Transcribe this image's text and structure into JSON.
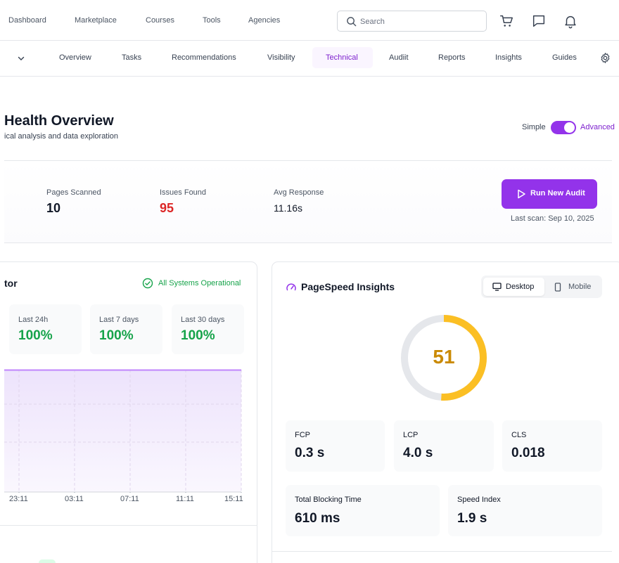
{
  "topnav": {
    "links": [
      "Dashboard",
      "Marketplace",
      "Courses",
      "Tools",
      "Agencies"
    ],
    "search_placeholder": "Search"
  },
  "subnav": {
    "tabs": [
      "Overview",
      "Tasks",
      "Recommendations",
      "Visibility",
      "Technical",
      "Audiit",
      "Reports",
      "Insights",
      "Guides"
    ],
    "active_tab": "Technical"
  },
  "header": {
    "title": "Health Overview",
    "subtitle": "ical analysis and data exploration",
    "mode_simple": "Simple",
    "mode_advanced": "Advanced"
  },
  "stats": {
    "pages_scanned_label": "Pages Scanned",
    "pages_scanned": "10",
    "issues_found_label": "Issues Found",
    "issues_found": "95",
    "avg_response_label": "Avg Response",
    "avg_response": "11.16s",
    "run_audit_label": "Run New Audit",
    "last_scan": "Last scan: Sep 10, 2025"
  },
  "uptime": {
    "title": "tor",
    "status": "All Systems Operational",
    "periods": [
      {
        "label": "Last 24h",
        "value": "100%"
      },
      {
        "label": "Last 7 days",
        "value": "100%"
      },
      {
        "label": "Last 30 days",
        "value": "100%"
      }
    ],
    "x_ticks": [
      "23:11",
      "03:11",
      "07:11",
      "11:11",
      "15:11"
    ]
  },
  "pagespeed": {
    "title": "PageSpeed Insights",
    "desktop_label": "Desktop",
    "mobile_label": "Mobile",
    "score": "51",
    "score_value": 51,
    "metrics": [
      {
        "label": "FCP",
        "value": "0.3 s"
      },
      {
        "label": "LCP",
        "value": "4.0 s"
      },
      {
        "label": "CLS",
        "value": "0.018"
      },
      {
        "label": "Total Blocking Time",
        "value": "610 ms"
      },
      {
        "label": "Speed Index",
        "value": "1.9 s"
      }
    ]
  },
  "colors": {
    "accent": "#9333ea",
    "success": "#16a34a",
    "danger": "#dc2626",
    "gauge": "#fbbf24"
  }
}
